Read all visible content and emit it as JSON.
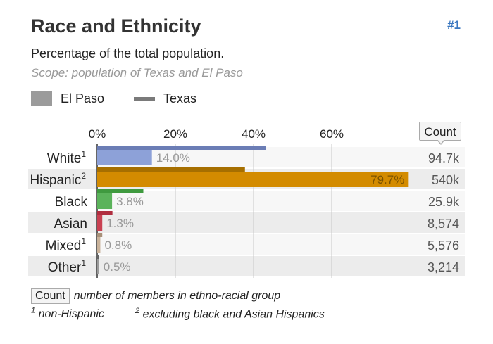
{
  "header": {
    "title": "Race and Ethnicity",
    "rank": "#1",
    "subtitle": "Percentage of the total population.",
    "scope": "Scope: population of Texas and El Paso"
  },
  "legend": {
    "el_paso": "El Paso",
    "texas": "Texas"
  },
  "count_button_label": "Count",
  "chart_data": {
    "type": "bar",
    "orientation": "horizontal",
    "x_ticks": [
      "0%",
      "20%",
      "40%",
      "60%"
    ],
    "xlim": [
      0,
      80
    ],
    "categories": [
      {
        "label": "White",
        "sup": "1"
      },
      {
        "label": "Hispanic",
        "sup": "2"
      },
      {
        "label": "Black",
        "sup": ""
      },
      {
        "label": "Asian",
        "sup": ""
      },
      {
        "label": "Mixed",
        "sup": "1"
      },
      {
        "label": "Other",
        "sup": "1"
      }
    ],
    "series": [
      {
        "name": "El Paso",
        "values": [
          14.0,
          79.7,
          3.8,
          1.3,
          0.8,
          0.5
        ],
        "labels": [
          "14.0%",
          "79.7%",
          "3.8%",
          "1.3%",
          "0.8%",
          "0.5%"
        ]
      },
      {
        "name": "Texas",
        "values": [
          43.2,
          37.8,
          11.8,
          3.9,
          1.3,
          0.4
        ]
      }
    ],
    "counts": [
      "94.7k",
      "540k",
      "25.9k",
      "8,574",
      "5,576",
      "3,214"
    ],
    "colors": [
      "#8da1d8",
      "#d38b00",
      "#5bb35b",
      "#c94152",
      "#c9b29a",
      "#9a9a9a"
    ],
    "texas_colors": [
      "#6b7db5",
      "#a66f00",
      "#3f9a3f",
      "#b02e40",
      "#a89078",
      "#666666"
    ]
  },
  "footnotes": {
    "count_chip": "Count",
    "count_desc": "number of members in ethno-racial group",
    "note1_sup": "1",
    "note1": "non-Hispanic",
    "note2_sup": "2",
    "note2": "excluding black and Asian Hispanics"
  }
}
